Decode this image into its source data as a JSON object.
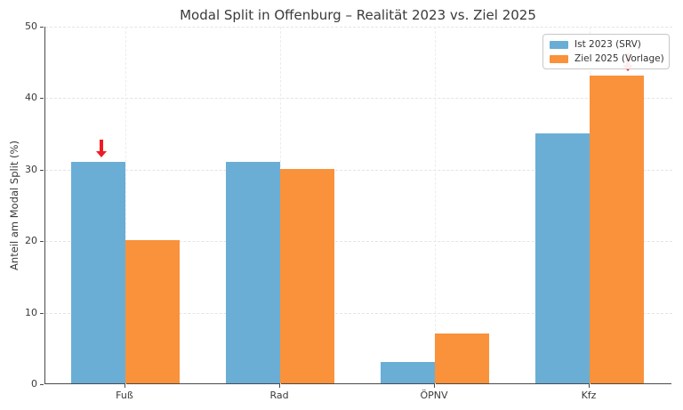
{
  "chart_data": {
    "type": "bar",
    "title": "Modal Split in Offenburg – Realität 2023 vs. Ziel 2025",
    "xlabel": "",
    "ylabel": "Anteil am Modal Split (%)",
    "categories": [
      "Fuß",
      "Rad",
      "ÖPNV",
      "Kfz"
    ],
    "series": [
      {
        "name": "Ist 2023 (SRV)",
        "color": "#6aaed6",
        "values": [
          31,
          31,
          3,
          35
        ]
      },
      {
        "name": "Ziel 2025 (Vorlage)",
        "color": "#f9923a",
        "values": [
          20,
          30,
          7,
          43
        ]
      }
    ],
    "ylim": [
      0,
      50
    ],
    "yticks": [
      0,
      10,
      20,
      30,
      40,
      50
    ],
    "grid": true,
    "legend_position": "upper right",
    "annotations": [
      {
        "type": "arrow-down",
        "category": "Fuß",
        "series": "Ist 2023 (SRV)",
        "color": "#ed1c24",
        "x_offset": 3
      },
      {
        "type": "arrow-down",
        "category": "Kfz",
        "series": "Ziel 2025 (Vorlage)",
        "color": "#ed1c24",
        "x_offset": 12
      }
    ]
  }
}
